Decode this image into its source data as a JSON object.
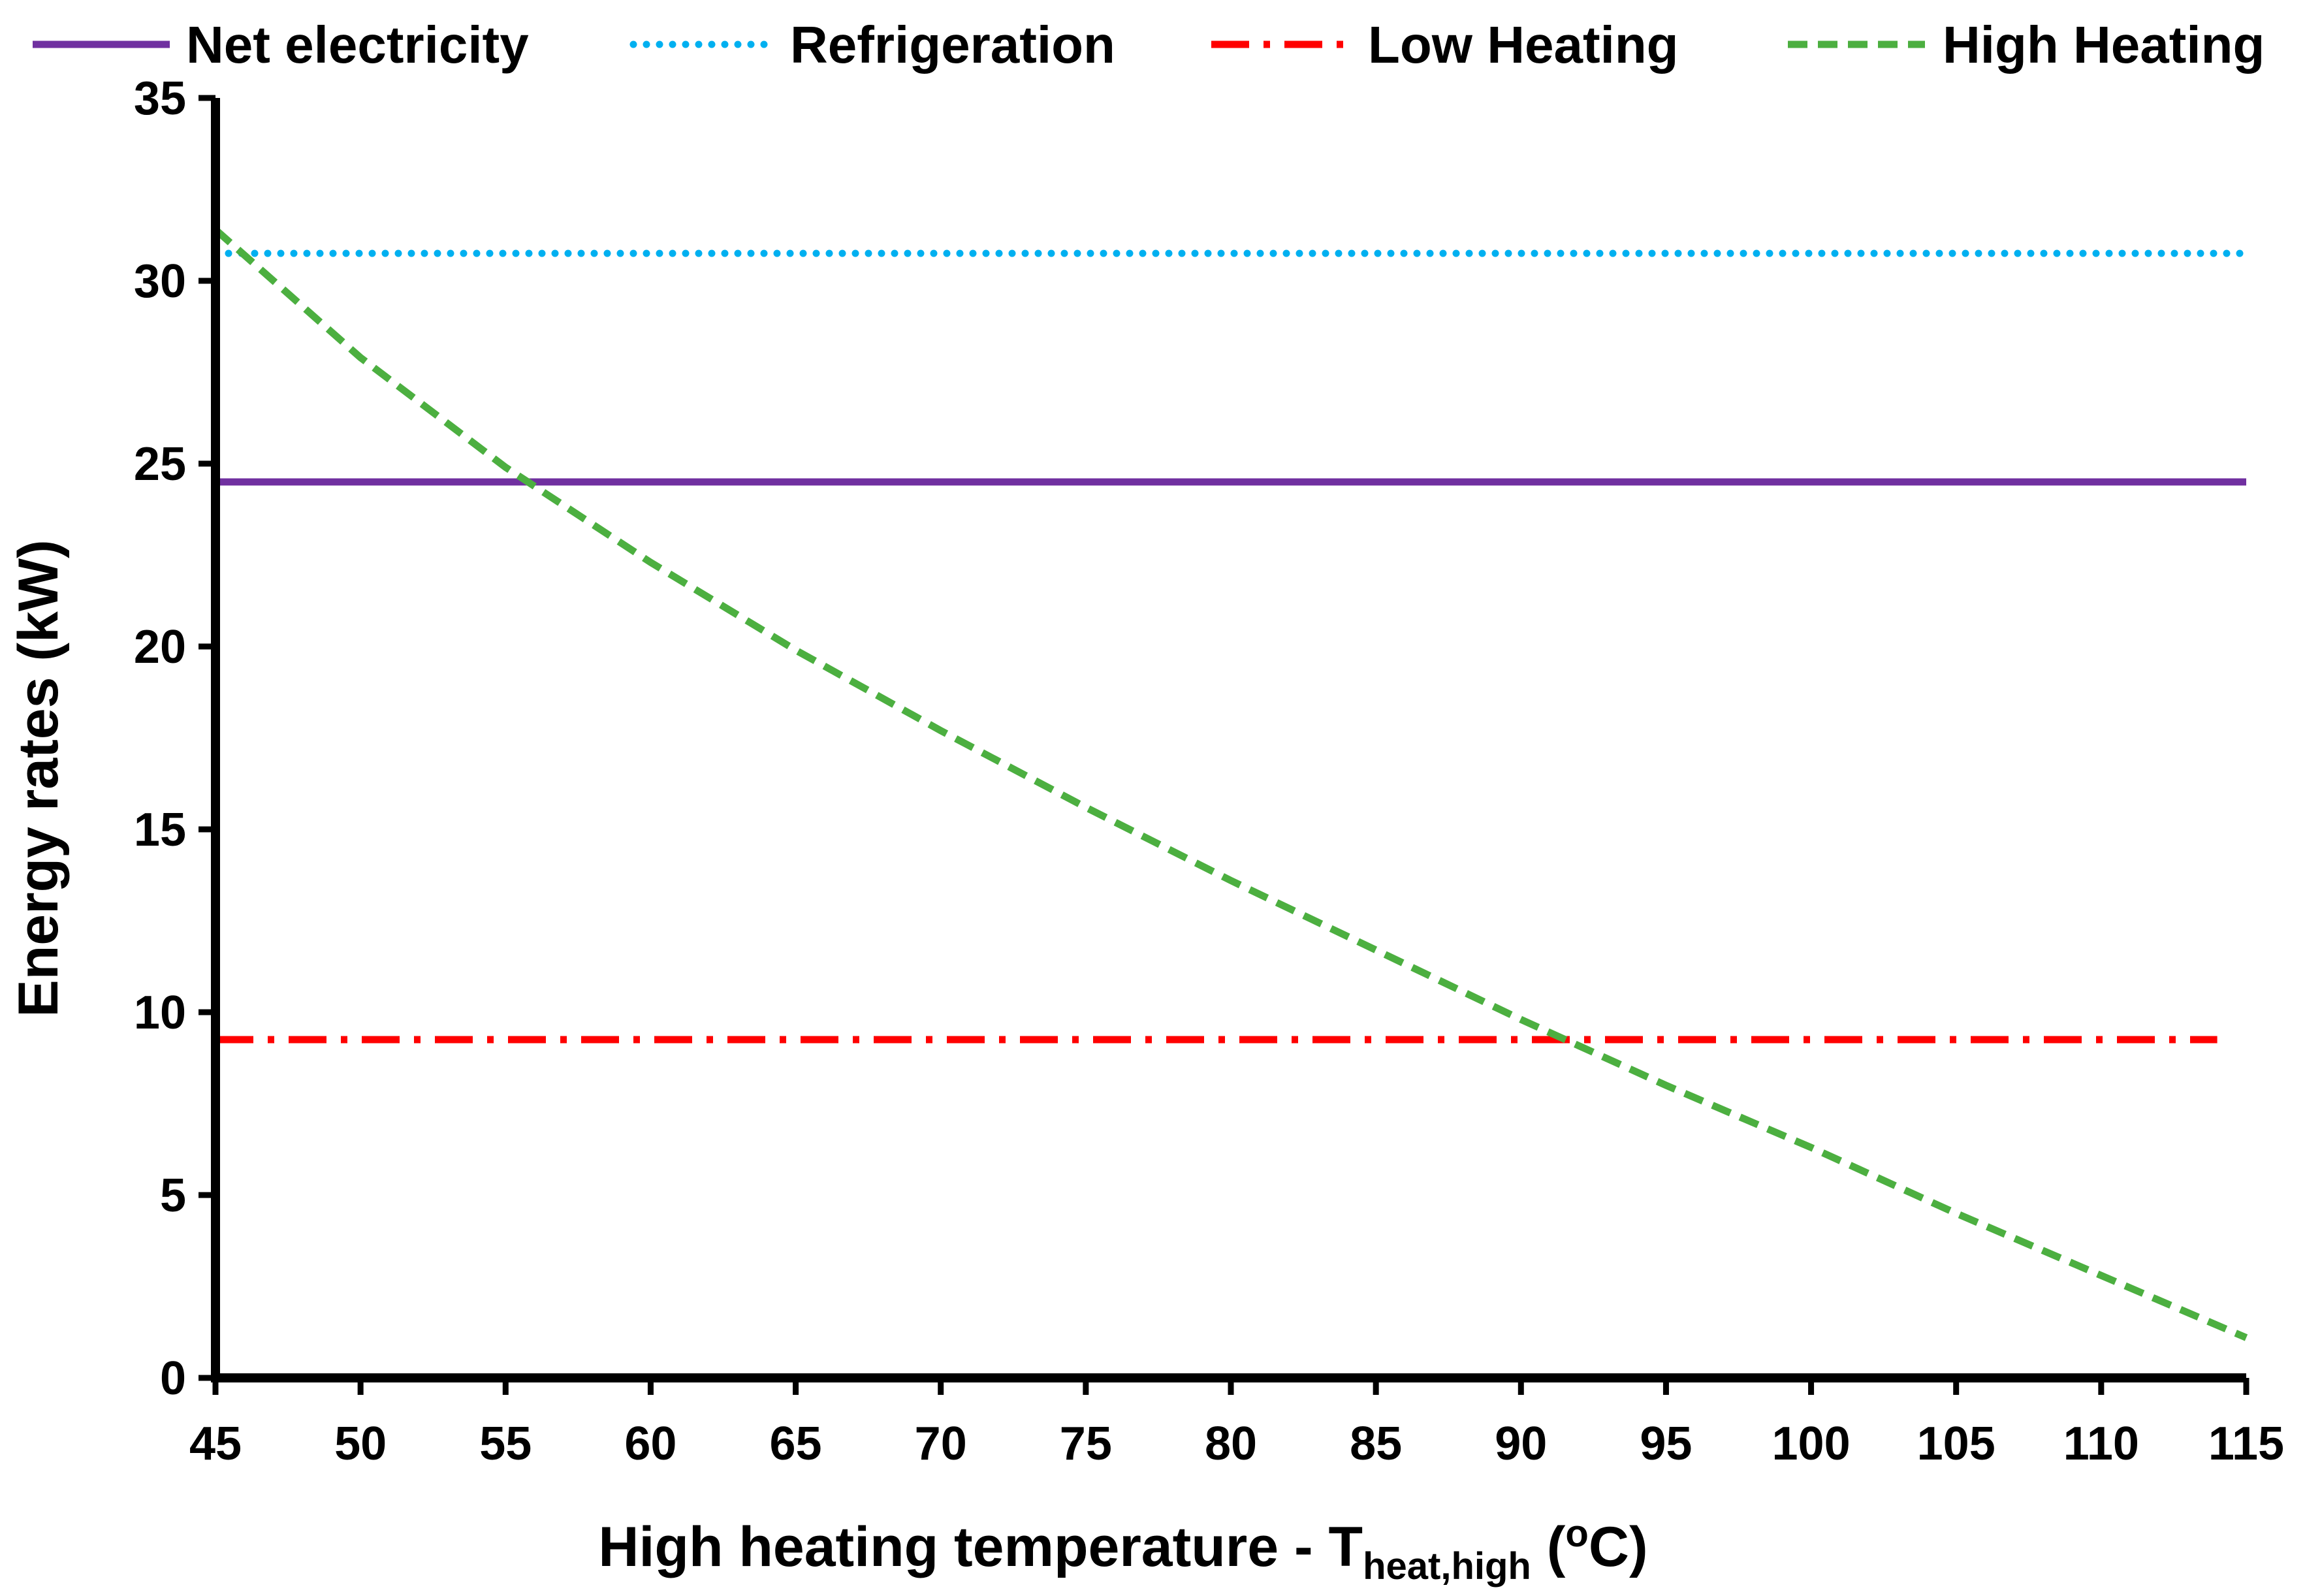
{
  "chart_data": {
    "type": "line",
    "title": "",
    "xlabel": {
      "main": "High heating temperature - T",
      "subscript": "heat,high",
      "unit_open": " (",
      "superscript": "o",
      "unit_close": "C)"
    },
    "ylabel": "Energy rates (kW)",
    "xlim": [
      45,
      115
    ],
    "ylim": [
      0,
      35
    ],
    "x_ticks": [
      45,
      50,
      55,
      60,
      65,
      70,
      75,
      80,
      85,
      90,
      95,
      100,
      105,
      110,
      115
    ],
    "y_ticks": [
      0,
      5,
      10,
      15,
      20,
      25,
      30,
      35
    ],
    "grid": false,
    "legend_position": "top",
    "series": [
      {
        "name": "Net electricity",
        "color": "#7030A0",
        "style": "solid",
        "x": [
          45,
          115
        ],
        "y": [
          24.5,
          24.5
        ]
      },
      {
        "name": "Refrigeration",
        "color": "#00B0F0",
        "style": "dotted",
        "x": [
          45,
          115
        ],
        "y": [
          30.75,
          30.75
        ]
      },
      {
        "name": "Low Heating",
        "color": "#FF0000",
        "style": "dashdot",
        "x": [
          45,
          114
        ],
        "y": [
          9.25,
          9.25
        ]
      },
      {
        "name": "High Heating",
        "color": "#4CAF40",
        "style": "dashed",
        "x": [
          45,
          50,
          55,
          60,
          65,
          70,
          75,
          80,
          85,
          90,
          95,
          100,
          105,
          110,
          115
        ],
        "y": [
          31.4,
          27.9,
          24.9,
          22.3,
          19.9,
          17.7,
          15.6,
          13.6,
          11.7,
          9.8,
          8.0,
          6.3,
          4.5,
          2.8,
          1.1
        ]
      }
    ]
  }
}
